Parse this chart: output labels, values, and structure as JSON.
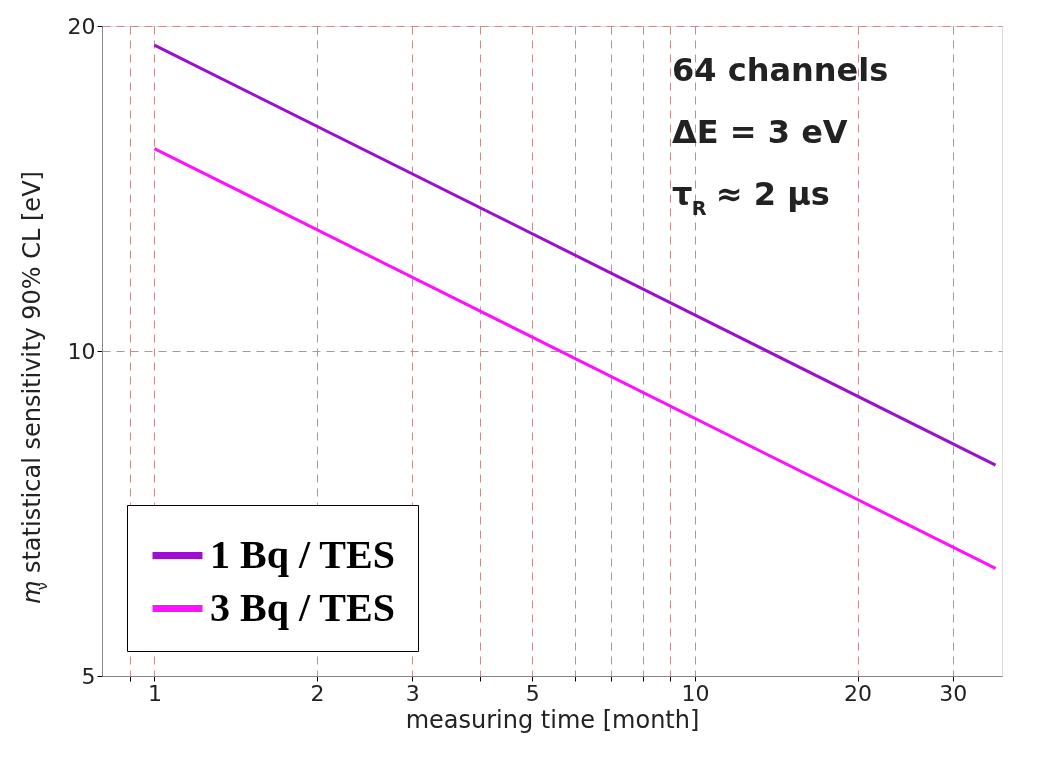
{
  "chart_data": {
    "type": "line",
    "xlabel": "measuring time [month]",
    "ylabel": "m$_{ν}$ statistical sensitivity 90% CL [eV]",
    "log": "xy",
    "xlim": [
      0.8,
      37
    ],
    "ylim": [
      5,
      20
    ],
    "xticks": [
      {
        "value": 0.9,
        "label": null
      },
      1,
      2,
      3,
      {
        "value": 4,
        "label": null
      },
      5,
      {
        "value": 6,
        "label": null
      },
      {
        "value": 7,
        "label": null
      },
      {
        "value": 8,
        "label": null
      },
      {
        "value": 9,
        "label": null
      },
      10,
      20,
      30
    ],
    "yticks": [
      5,
      10,
      20
    ],
    "grid": true,
    "legend": "bottom left",
    "line_style": "solid",
    "annotations": [
      "64 channels",
      "ΔE = 3 eV",
      "τ$_{R}$ ≈ 2 µs"
    ],
    "x": [
      1,
      36
    ],
    "series": [
      {
        "name": "1 Bq / TES",
        "color": "#9b10d0",
        "values": [
          19.2,
          7.84
        ]
      },
      {
        "name": "3 Bq / TES",
        "color": "#ff10ff",
        "values": [
          15.4,
          6.29
        ]
      }
    ]
  }
}
